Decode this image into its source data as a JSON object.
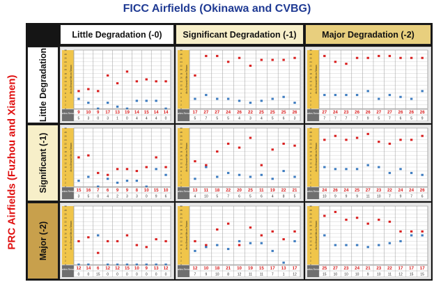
{
  "title": "FICC Airfields (Okinawa and CVBG)",
  "side_title": "PRC Airfields (Fuzhou and Xiamen)",
  "columns": [
    "Little Degradation (-0)",
    "Significant Degradation (-1)",
    "Major Degradation (-2)"
  ],
  "rows": [
    "Little Degradation",
    "Significant (-1)",
    "Major (-2)"
  ],
  "colors": {
    "frame": "#151515",
    "col_headers": [
      "#ffffff",
      "#f7efc9",
      "#e8cf7e"
    ],
    "row_headers": [
      "#ffffff",
      "#f7efc9",
      "#c8a04c"
    ],
    "red_marker": "#d81e1e",
    "blue_marker": "#3c7bbf",
    "yaxis_strip": "#f0c54a",
    "title": "#1f3a93",
    "side_title": "#e01010"
  },
  "chart_data": [
    {
      "type": "scatter",
      "row": "Little Degradation",
      "column": "Little Degradation (-0)",
      "ylabel": "Air-to-Ground Kills on Taiwan",
      "table_label": "Air Sorties Remaining",
      "ylim": [
        0,
        30
      ],
      "series": [
        {
          "color": "red",
          "values": [
            9,
            10,
            9,
            17,
            13,
            19,
            14,
            15,
            14,
            14
          ]
        },
        {
          "color": "blue",
          "values": [
            5,
            3,
            0,
            3,
            1,
            0,
            4,
            4,
            4,
            0
          ]
        }
      ],
      "table": {
        "row1": [
          "9",
          "10",
          "9",
          "17",
          "13",
          "19",
          "14",
          "15",
          "14",
          "14"
        ],
        "row2": [
          "5",
          "3",
          "0",
          "3",
          "1",
          "0",
          "4",
          "4",
          "4",
          "0"
        ]
      }
    },
    {
      "type": "scatter",
      "row": "Little Degradation",
      "column": "Significant Degradation (-1)",
      "ylabel": "Air-to-Ground Kills on Taiwan",
      "table_label": "Air Sorties Remaining",
      "ylim": [
        0,
        30
      ],
      "series": [
        {
          "color": "red",
          "values": [
            17,
            27,
            27,
            24,
            26,
            22,
            25,
            25,
            25,
            26
          ]
        },
        {
          "color": "blue",
          "values": [
            5,
            7,
            5,
            5,
            4,
            3,
            4,
            5,
            6,
            3
          ]
        }
      ],
      "table": {
        "row1": [
          "17",
          "27",
          "27",
          "24",
          "26",
          "22",
          "25",
          "25",
          "25",
          "26"
        ],
        "row2": [
          "5",
          "7",
          "5",
          "5",
          "4",
          "3",
          "4",
          "5",
          "6",
          "3"
        ]
      }
    },
    {
      "type": "scatter",
      "row": "Little Degradation",
      "column": "Major Degradation (-2)",
      "ylabel": "Air-to-Ground Kills on Taiwan",
      "table_label": "Air Sorties Remaining",
      "ylim": [
        0,
        30
      ],
      "series": [
        {
          "color": "red",
          "values": [
            27,
            24,
            23,
            26,
            26,
            27,
            27,
            26,
            26,
            26
          ]
        },
        {
          "color": "blue",
          "values": [
            7,
            7,
            7,
            7,
            9,
            5,
            7,
            6,
            5,
            9
          ]
        }
      ],
      "table": {
        "row1": [
          "27",
          "24",
          "23",
          "26",
          "26",
          "27",
          "27",
          "26",
          "26",
          "26"
        ],
        "row2": [
          "7",
          "7",
          "7",
          "7",
          "9",
          "5",
          "7",
          "6",
          "5",
          "9"
        ]
      }
    },
    {
      "type": "scatter",
      "row": "Significant (-1)",
      "column": "Little Degradation (-0)",
      "ylabel": "Air-to-Ground Kills on Taiwan",
      "table_label": "Air Sorties Remaining",
      "ylim": [
        0,
        30
      ],
      "series": [
        {
          "color": "red",
          "values": [
            15,
            16,
            7,
            6,
            9,
            9,
            8,
            10,
            15,
            10
          ]
        },
        {
          "color": "blue",
          "values": [
            3,
            5,
            0,
            4,
            2,
            3,
            3,
            0,
            9,
            6
          ]
        }
      ],
      "table": {
        "row1": [
          "15",
          "16",
          "7",
          "6",
          "9",
          "9",
          "8",
          "10",
          "15",
          "10"
        ],
        "row2": [
          "3",
          "5",
          "0",
          "4",
          "2",
          "3",
          "3",
          "0",
          "9",
          "6"
        ]
      }
    },
    {
      "type": "scatter",
      "row": "Significant (-1)",
      "column": "Significant Degradation (-1)",
      "ylabel": "Air-to-Ground Kills on Taiwan",
      "table_label": "Air Sorties Remaining",
      "ylim": [
        0,
        30
      ],
      "series": [
        {
          "color": "red",
          "values": [
            13,
            11,
            18,
            22,
            20,
            25,
            11,
            19,
            22,
            21
          ]
        },
        {
          "color": "blue",
          "values": [
            4,
            10,
            5,
            7,
            6,
            5,
            6,
            4,
            8,
            5
          ]
        }
      ],
      "table": {
        "row1": [
          "13",
          "11",
          "18",
          "22",
          "20",
          "25",
          "11",
          "19",
          "22",
          "21"
        ],
        "row2": [
          "4",
          "10",
          "5",
          "7",
          "6",
          "5",
          "6",
          "4",
          "8",
          "5"
        ]
      }
    },
    {
      "type": "scatter",
      "row": "Significant (-1)",
      "column": "Major Degradation (-2)",
      "ylabel": "Air-to-Ground Kills on Taiwan",
      "table_label": "Air Sorties Remaining",
      "ylim": [
        0,
        30
      ],
      "series": [
        {
          "color": "red",
          "values": [
            24,
            26,
            24,
            25,
            27,
            23,
            22,
            24,
            24,
            26
          ]
        },
        {
          "color": "blue",
          "values": [
            10,
            9,
            9,
            9,
            11,
            10,
            7,
            9,
            7,
            6
          ]
        }
      ],
      "table": {
        "row1": [
          "24",
          "26",
          "24",
          "25",
          "27",
          "23",
          "22",
          "24",
          "24",
          "26"
        ],
        "row2": [
          "10",
          "9",
          "9",
          "9",
          "11",
          "10",
          "7",
          "9",
          "7",
          "6"
        ]
      }
    },
    {
      "type": "scatter",
      "row": "Major (-2)",
      "column": "Little Degradation (-0)",
      "ylabel": "Air-to-Ground Kills on Taiwan",
      "table_label": "Air Sorties Remaining",
      "ylim": [
        0,
        30
      ],
      "series": [
        {
          "color": "red",
          "values": [
            12,
            14,
            6,
            12,
            12,
            15,
            10,
            9,
            13,
            12
          ]
        },
        {
          "color": "blue",
          "values": [
            0,
            0,
            15,
            0,
            0,
            0,
            0,
            0,
            0,
            0
          ]
        }
      ],
      "table": {
        "row1": [
          "12",
          "14",
          "6",
          "12",
          "12",
          "15",
          "10",
          "9",
          "13",
          "12"
        ],
        "row2": [
          "0",
          "0",
          "15",
          "0",
          "0",
          "0",
          "0",
          "0",
          "0",
          "0"
        ]
      }
    },
    {
      "type": "scatter",
      "row": "Major (-2)",
      "column": "Significant Degradation (-1)",
      "ylabel": "Air-to-Ground Kills on Taiwan",
      "table_label": "Air Sorties Remaining",
      "ylim": [
        0,
        30
      ],
      "series": [
        {
          "color": "red",
          "values": [
            12,
            10,
            18,
            21,
            10,
            19,
            15,
            17,
            13,
            17
          ]
        },
        {
          "color": "blue",
          "values": [
            7,
            9,
            10,
            8,
            12,
            11,
            11,
            7,
            1,
            12
          ]
        }
      ],
      "table": {
        "row1": [
          "12",
          "10",
          "18",
          "21",
          "10",
          "19",
          "15",
          "17",
          "13",
          "17"
        ],
        "row2": [
          "7",
          "9",
          "10",
          "8",
          "12",
          "11",
          "11",
          "7",
          "1",
          "12"
        ]
      }
    },
    {
      "type": "scatter",
      "row": "Major (-2)",
      "column": "Major Degradation (-2)",
      "ylabel": "Air-to-Ground Kills on Taiwan",
      "table_label": "Air Sorties Remaining",
      "ylim": [
        0,
        30
      ],
      "series": [
        {
          "color": "red",
          "values": [
            25,
            27,
            23,
            24,
            21,
            23,
            22,
            17,
            17,
            17
          ]
        },
        {
          "color": "blue",
          "values": [
            15,
            10,
            10,
            10,
            9,
            10,
            11,
            12,
            15,
            15
          ]
        }
      ],
      "table": {
        "row1": [
          "25",
          "27",
          "23",
          "24",
          "21",
          "23",
          "22",
          "17",
          "17",
          "17"
        ],
        "row2": [
          "15",
          "10",
          "10",
          "10",
          "9",
          "10",
          "11",
          "12",
          "15",
          "15"
        ]
      }
    }
  ]
}
